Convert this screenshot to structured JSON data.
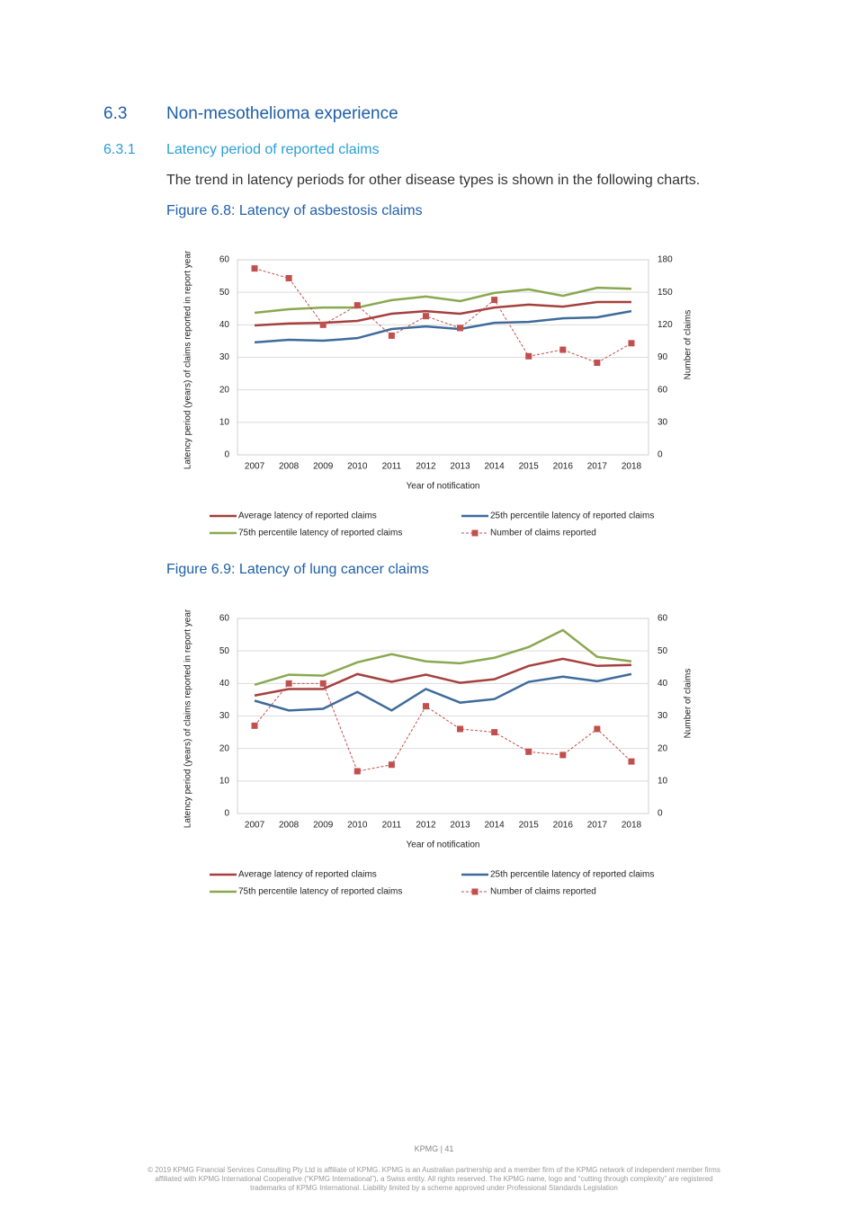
{
  "heading": {
    "number": "6.3",
    "title": "Non-mesothelioma experience"
  },
  "subheading": {
    "number": "6.3.1",
    "title": "Latency period of reported claims"
  },
  "intro": "The trend in latency periods for other disease types is shown in the following charts.",
  "chart_data": [
    {
      "type": "line",
      "title": "Figure 6.8: Latency of asbestosis claims",
      "x_label": "Year of notification",
      "y_label": "Latency period (years) of claims reported in report year",
      "y2_label": "Number of claims",
      "categories": [
        "2007",
        "2008",
        "2009",
        "2010",
        "2011",
        "2012",
        "2013",
        "2014",
        "2015",
        "2016",
        "2017",
        "2018"
      ],
      "ylim": [
        0,
        60
      ],
      "yticks": [
        0,
        10,
        20,
        30,
        40,
        50,
        60
      ],
      "y2lim": [
        0,
        180
      ],
      "y2ticks": [
        0,
        30,
        60,
        90,
        120,
        150,
        180
      ],
      "grid": true,
      "legend": "bottom",
      "series": [
        {
          "name": "Average latency of reported claims",
          "color": "#a5403d",
          "values": [
            39.8,
            40.4,
            40.6,
            41.2,
            43.4,
            44.2,
            43.4,
            45.3,
            46.2,
            45.6,
            47,
            47
          ]
        },
        {
          "name": "25th percentile latency of reported claims",
          "color": "#3e6b9a",
          "values": [
            34.6,
            35.4,
            35.1,
            35.9,
            38.7,
            39.5,
            38.7,
            40.6,
            40.9,
            42,
            42.3,
            44.2
          ]
        },
        {
          "name": "75th percentile latency of reported claims",
          "color": "#8aa84f",
          "values": [
            43.7,
            44.8,
            45.3,
            45.3,
            47.6,
            48.7,
            47.3,
            49.8,
            50.9,
            48.9,
            51.4,
            51.1
          ]
        },
        {
          "name": "Number of claims reported",
          "color": "#c0504d",
          "axis": "y2",
          "line_style": "dashed",
          "marker": "square",
          "values": [
            172,
            163,
            120,
            138,
            110,
            128,
            117,
            143,
            91,
            97,
            85,
            103
          ]
        }
      ]
    },
    {
      "type": "line",
      "title": "Figure 6.9: Latency of lung cancer claims",
      "x_label": "Year of notification",
      "y_label": "Latency period (years) of claims reported in report year",
      "y2_label": "Number of claims",
      "categories": [
        "2007",
        "2008",
        "2009",
        "2010",
        "2011",
        "2012",
        "2013",
        "2014",
        "2015",
        "2016",
        "2017",
        "2018"
      ],
      "ylim": [
        0,
        60
      ],
      "yticks": [
        0,
        10,
        20,
        30,
        40,
        50,
        60
      ],
      "y2lim": [
        0,
        60
      ],
      "y2ticks": [
        0,
        10,
        20,
        30,
        40,
        50,
        60
      ],
      "grid": true,
      "legend": "bottom",
      "series": [
        {
          "name": "Average latency of reported claims",
          "color": "#a5403d",
          "values": [
            36.3,
            38.3,
            38.3,
            42.9,
            40.5,
            42.7,
            40.2,
            41.3,
            45.4,
            47.6,
            45.4,
            45.7
          ]
        },
        {
          "name": "25th percentile latency of reported claims",
          "color": "#3e6b9a",
          "values": [
            34.7,
            31.7,
            32.2,
            37.4,
            31.7,
            38.3,
            34.1,
            35.2,
            40.5,
            42.1,
            40.7,
            42.9
          ]
        },
        {
          "name": "75th percentile latency of reported claims",
          "color": "#8aa84f",
          "values": [
            39.6,
            42.7,
            42.4,
            46.5,
            49,
            46.8,
            46.2,
            47.9,
            51.2,
            56.4,
            48.2,
            46.8
          ]
        },
        {
          "name": "Number of claims reported",
          "color": "#c0504d",
          "axis": "y2",
          "line_style": "dashed",
          "marker": "square",
          "values": [
            27,
            40,
            40,
            13,
            15,
            33,
            26,
            25,
            19,
            18,
            26,
            16
          ]
        }
      ]
    }
  ],
  "footer": {
    "page": "KPMG | 41",
    "copyright": [
      "© 2019 KPMG Financial Services Consulting Pty Ltd is affiliate of KPMG. KPMG is an Australian partnership and a member firm of the KPMG network of independent member firms",
      "affiliated with KPMG International Cooperative (“KPMG International”), a Swiss entity. All rights reserved. The KPMG name, logo and “cutting through complexity” are registered",
      "trademarks of KPMG International. Liability limited by a scheme approved under Professional Standards Legislation"
    ]
  }
}
